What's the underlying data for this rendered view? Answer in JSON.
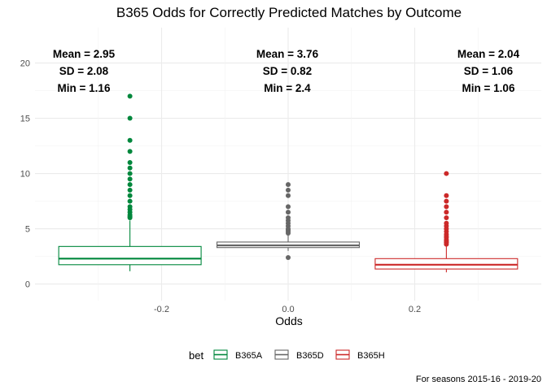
{
  "chart_data": {
    "type": "boxplot",
    "title": "B365 Odds for Correctly Predicted Matches by Outcome",
    "xlabel": "Odds",
    "ylabel": "",
    "caption": "For seasons 2015-16 - 2019-20",
    "xlim": [
      -0.4,
      0.4
    ],
    "ylim": [
      -1.5,
      23.2
    ],
    "x_ticks": [
      -0.2,
      0.0,
      0.2
    ],
    "x_tick_labels": [
      "-0.2",
      "0.0",
      "0.2"
    ],
    "y_ticks": [
      0,
      5,
      10,
      15,
      20
    ],
    "y_tick_labels": [
      "0",
      "5",
      "10",
      "15",
      "20"
    ],
    "grid": true,
    "legend": {
      "title": "bet",
      "position": "bottom"
    },
    "series": [
      {
        "name": "B365A",
        "color": "#00873c",
        "x": -0.25,
        "width": 0.225,
        "whisker_low": 1.16,
        "q1": 1.75,
        "median": 2.3,
        "q3": 3.4,
        "whisker_high": 5.75,
        "outliers": [
          6.0,
          6.1,
          6.25,
          6.5,
          6.75,
          7.0,
          7.5,
          8.0,
          8.5,
          9.0,
          9.5,
          10.0,
          10.5,
          11.0,
          12.0,
          13.0,
          15.0,
          17.0
        ],
        "annotation": {
          "mean": "Mean = 2.95",
          "sd": "SD = 2.08",
          "min": "Min = 1.16"
        }
      },
      {
        "name": "B365D",
        "color": "#666666",
        "x": 0.0,
        "width": 0.225,
        "whisker_low": 3.0,
        "q1": 3.3,
        "median": 3.5,
        "q3": 3.8,
        "whisker_high": 4.4,
        "outliers": [
          2.4,
          4.6,
          4.75,
          4.9,
          5.0,
          5.25,
          5.5,
          5.75,
          6.0,
          6.5,
          7.0,
          8.0,
          8.5,
          9.0
        ],
        "annotation": {
          "mean": "Mean = 3.76",
          "sd": "SD = 0.82",
          "min": "Min = 2.4"
        }
      },
      {
        "name": "B365H",
        "color": "#cc2929",
        "x": 0.25,
        "width": 0.225,
        "whisker_low": 1.06,
        "q1": 1.36,
        "median": 1.75,
        "q3": 2.3,
        "whisker_high": 3.5,
        "outliers": [
          3.6,
          3.75,
          3.8,
          3.9,
          4.0,
          4.2,
          4.33,
          4.5,
          4.75,
          5.0,
          5.25,
          5.5,
          6.0,
          6.5,
          7.0,
          7.5,
          8.0,
          10.0
        ],
        "annotation": {
          "mean": "Mean = 2.04",
          "sd": "SD = 1.06",
          "min": "Min = 1.06"
        }
      }
    ]
  }
}
